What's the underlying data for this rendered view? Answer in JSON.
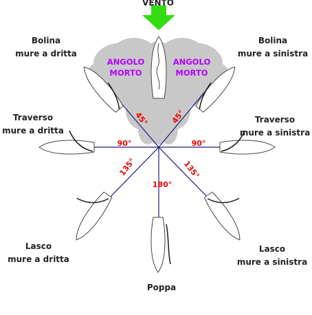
{
  "wind": {
    "label": "VENTO",
    "arrow_color": "#33dd11"
  },
  "dead_zone": {
    "left_line1": "ANGOLO",
    "left_line2": "MORTO",
    "right_line1": "ANGOLO",
    "right_line2": "MORTO",
    "text_color": "#b300ff",
    "cloud_color": "#c8c8c8"
  },
  "angles": {
    "a45_left": "45°",
    "a45_right": "45°",
    "a90_left": "90°",
    "a90_right": "90°",
    "a135_left": "135°",
    "a135_right": "135°",
    "a180": "180°",
    "color": "#ee0000"
  },
  "points_of_sail": {
    "bolina_dritta": {
      "line1": "Bolina",
      "line2": "mure a dritta"
    },
    "bolina_sinistra": {
      "line1": "Bolina",
      "line2": "mure a sinistra"
    },
    "traverso_dritta": {
      "line1": "Traverso",
      "line2": "mure a dritta"
    },
    "traverso_sinistra": {
      "line1": "Traverso",
      "line2": "mure a sinistra"
    },
    "lasco_dritta": {
      "line1": "Lasco",
      "line2": "mure a dritta"
    },
    "lasco_sinistra": {
      "line1": "Lasco",
      "line2": "mure a sinistra"
    },
    "poppa": {
      "line1": "Poppa"
    }
  },
  "line_color": "#1a1a80"
}
